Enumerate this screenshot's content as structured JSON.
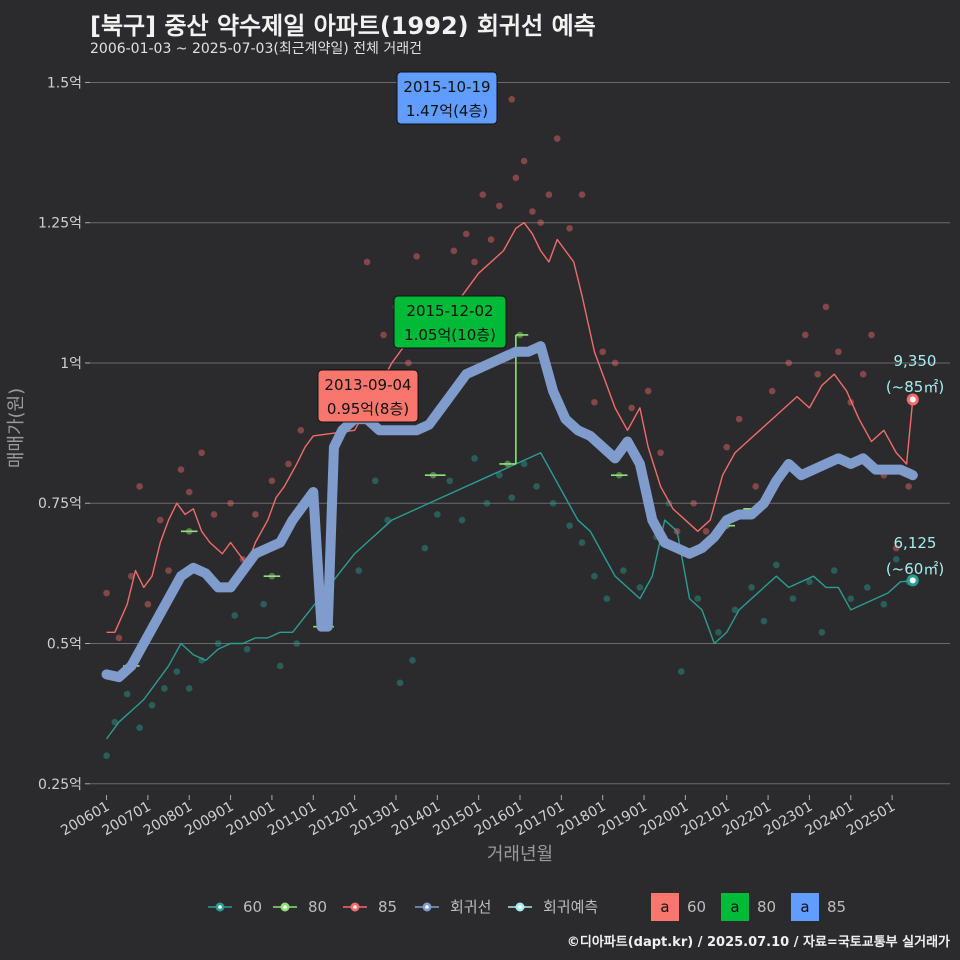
{
  "header": {
    "title": "[북구] 중산 약수제일 아파트(1992) 회귀선 예측",
    "subtitle": "2006-01-03 ~ 2025-07-03(최근계약일) 전체 거래건"
  },
  "caption": "©디아파트(dapt.kr) / 2025.07.10 / 자료=국토교통부 실거래가",
  "colors": {
    "s60": "#2a9d93",
    "s80": "#8fe07a",
    "s85": "#f26b6b",
    "regression": "#7f9ccc",
    "forecast": "#a8ecec",
    "box60": "#f8766d",
    "box80": "#00ba38",
    "box85": "#619cff",
    "grid": "#6a6a6a"
  },
  "chart_data": {
    "type": "line",
    "title": "[북구] 중산 약수제일 아파트(1992) 회귀선 예측",
    "xlabel": "거래년월",
    "ylabel": "매매가(원)",
    "xlim": [
      2005.6,
      2026.4
    ],
    "ylim": [
      0.23,
      1.54
    ],
    "x_ticks": [
      2006,
      2007,
      2008,
      2009,
      2010,
      2011,
      2012,
      2013,
      2014,
      2015,
      2016,
      2017,
      2018,
      2019,
      2020,
      2021,
      2022,
      2023,
      2024,
      2025
    ],
    "x_tick_labels": [
      "200601",
      "200701",
      "200801",
      "200901",
      "201001",
      "201101",
      "201201",
      "201301",
      "201401",
      "201501",
      "201601",
      "201701",
      "201801",
      "201901",
      "202001",
      "202101",
      "202201",
      "202301",
      "202401",
      "202501"
    ],
    "y_ticks": [
      0.25,
      0.5,
      0.75,
      1.0,
      1.25,
      1.5
    ],
    "y_tick_labels": [
      "0.25억",
      "0.5억",
      "0.75억",
      "1억",
      "1.25억",
      "1.5억"
    ],
    "series": [
      {
        "name": "85",
        "kind": "rolling",
        "x": [
          2006.0,
          2006.2,
          2006.5,
          2006.7,
          2006.9,
          2007.1,
          2007.3,
          2007.5,
          2007.7,
          2007.9,
          2008.1,
          2008.3,
          2008.5,
          2008.8,
          2009.0,
          2009.2,
          2009.4,
          2009.6,
          2009.9,
          2010.1,
          2010.3,
          2010.6,
          2010.8,
          2011.0,
          2012.0,
          2012.3,
          2012.6,
          2012.9,
          2013.2,
          2013.5,
          2013.8,
          2014.1,
          2014.4,
          2014.7,
          2015.0,
          2015.3,
          2015.6,
          2015.9,
          2016.1,
          2016.3,
          2016.5,
          2016.7,
          2016.9,
          2017.1,
          2017.3,
          2017.5,
          2017.8,
          2018.0,
          2018.3,
          2018.6,
          2018.9,
          2019.1,
          2019.4,
          2019.7,
          2020.0,
          2020.3,
          2020.6,
          2020.9,
          2021.2,
          2021.5,
          2021.8,
          2022.1,
          2022.4,
          2022.7,
          2023.0,
          2023.3,
          2023.6,
          2023.9,
          2024.2,
          2024.5,
          2024.8,
          2025.1,
          2025.35,
          2025.5
        ],
        "values": [
          0.52,
          0.52,
          0.57,
          0.63,
          0.6,
          0.62,
          0.68,
          0.72,
          0.75,
          0.73,
          0.74,
          0.7,
          0.68,
          0.66,
          0.68,
          0.66,
          0.64,
          0.68,
          0.72,
          0.76,
          0.78,
          0.82,
          0.85,
          0.87,
          0.88,
          0.92,
          0.96,
          1.0,
          1.03,
          1.05,
          1.06,
          1.08,
          1.1,
          1.13,
          1.16,
          1.18,
          1.2,
          1.24,
          1.25,
          1.23,
          1.2,
          1.18,
          1.22,
          1.2,
          1.18,
          1.12,
          1.02,
          0.98,
          0.92,
          0.88,
          0.92,
          0.85,
          0.78,
          0.74,
          0.72,
          0.7,
          0.72,
          0.8,
          0.84,
          0.86,
          0.88,
          0.9,
          0.92,
          0.94,
          0.92,
          0.96,
          0.98,
          0.95,
          0.9,
          0.86,
          0.88,
          0.84,
          0.82,
          0.935
        ]
      },
      {
        "name": "60",
        "kind": "rolling",
        "x": [
          2006.0,
          2006.3,
          2006.6,
          2006.9,
          2007.2,
          2007.5,
          2007.8,
          2008.1,
          2008.4,
          2008.7,
          2009.0,
          2009.3,
          2009.6,
          2009.9,
          2010.2,
          2010.5,
          2012.0,
          2012.3,
          2012.6,
          2012.9,
          2013.2,
          2013.5,
          2013.8,
          2014.1,
          2014.4,
          2014.7,
          2015.0,
          2015.3,
          2015.6,
          2015.9,
          2016.2,
          2016.5,
          2016.8,
          2017.1,
          2017.4,
          2017.7,
          2018.0,
          2018.3,
          2018.6,
          2018.9,
          2019.2,
          2019.5,
          2019.8,
          2020.1,
          2020.4,
          2020.7,
          2021.0,
          2021.3,
          2021.6,
          2021.9,
          2022.2,
          2022.5,
          2022.8,
          2023.1,
          2023.4,
          2023.7,
          2024.0,
          2024.3,
          2024.6,
          2024.9,
          2025.2,
          2025.5
        ],
        "values": [
          0.33,
          0.36,
          0.38,
          0.4,
          0.43,
          0.46,
          0.5,
          0.48,
          0.47,
          0.49,
          0.5,
          0.5,
          0.51,
          0.51,
          0.52,
          0.52,
          0.66,
          0.68,
          0.7,
          0.72,
          0.73,
          0.74,
          0.75,
          0.76,
          0.77,
          0.78,
          0.79,
          0.8,
          0.81,
          0.82,
          0.83,
          0.84,
          0.8,
          0.76,
          0.72,
          0.7,
          0.66,
          0.62,
          0.6,
          0.58,
          0.62,
          0.72,
          0.7,
          0.58,
          0.56,
          0.5,
          0.52,
          0.56,
          0.58,
          0.6,
          0.62,
          0.6,
          0.61,
          0.62,
          0.6,
          0.6,
          0.56,
          0.57,
          0.58,
          0.59,
          0.61,
          0.612
        ]
      },
      {
        "name": "80",
        "kind": "segments",
        "segments": [
          [
            2006.4,
            2006.8,
            0.46
          ],
          [
            2007.8,
            2008.2,
            0.7
          ],
          [
            2009.8,
            2010.2,
            0.62
          ],
          [
            2011.0,
            2011.5,
            0.53
          ],
          [
            2013.7,
            2014.2,
            0.8
          ],
          [
            2015.5,
            2015.9,
            0.82
          ],
          [
            2015.9,
            2016.2,
            1.05
          ],
          [
            2018.2,
            2018.6,
            0.8
          ],
          [
            2020.8,
            2021.2,
            0.71
          ],
          [
            2021.4,
            2021.9,
            0.74
          ]
        ]
      },
      {
        "name": "회귀선",
        "kind": "regression",
        "x": [
          2006.0,
          2006.3,
          2006.6,
          2006.9,
          2007.2,
          2007.5,
          2007.8,
          2008.1,
          2008.4,
          2008.7,
          2009.0,
          2009.3,
          2009.6,
          2009.9,
          2010.2,
          2010.5,
          2010.8,
          2011.0,
          2011.2,
          2011.35,
          2011.5,
          2011.7,
          2012.0,
          2012.3,
          2012.6,
          2012.9,
          2013.2,
          2013.5,
          2013.8,
          2014.1,
          2014.4,
          2014.7,
          2015.0,
          2015.3,
          2015.6,
          2015.9,
          2016.2,
          2016.5,
          2016.8,
          2017.1,
          2017.4,
          2017.7,
          2018.0,
          2018.3,
          2018.6,
          2018.9,
          2019.2,
          2019.5,
          2019.8,
          2020.1,
          2020.4,
          2020.7,
          2021.0,
          2021.3,
          2021.6,
          2021.9,
          2022.2,
          2022.5,
          2022.8,
          2023.1,
          2023.4,
          2023.7,
          2024.0,
          2024.3,
          2024.6,
          2024.9,
          2025.2,
          2025.5
        ],
        "values": [
          0.445,
          0.44,
          0.46,
          0.5,
          0.54,
          0.58,
          0.62,
          0.635,
          0.625,
          0.6,
          0.6,
          0.63,
          0.66,
          0.67,
          0.68,
          0.72,
          0.75,
          0.77,
          0.53,
          0.53,
          0.85,
          0.88,
          0.9,
          0.9,
          0.88,
          0.88,
          0.88,
          0.88,
          0.89,
          0.92,
          0.95,
          0.98,
          0.99,
          1.0,
          1.01,
          1.02,
          1.02,
          1.03,
          0.95,
          0.9,
          0.88,
          0.87,
          0.85,
          0.83,
          0.86,
          0.82,
          0.72,
          0.68,
          0.67,
          0.66,
          0.67,
          0.69,
          0.72,
          0.73,
          0.73,
          0.75,
          0.79,
          0.82,
          0.8,
          0.81,
          0.82,
          0.83,
          0.82,
          0.83,
          0.81,
          0.81,
          0.81,
          0.8
        ]
      }
    ],
    "scatter": {
      "85": [
        [
          2006.0,
          0.59
        ],
        [
          2006.3,
          0.51
        ],
        [
          2006.6,
          0.62
        ],
        [
          2006.8,
          0.78
        ],
        [
          2007.0,
          0.57
        ],
        [
          2007.3,
          0.72
        ],
        [
          2007.5,
          0.63
        ],
        [
          2007.8,
          0.81
        ],
        [
          2008.0,
          0.77
        ],
        [
          2008.3,
          0.84
        ],
        [
          2008.6,
          0.73
        ],
        [
          2009.0,
          0.75
        ],
        [
          2009.3,
          0.65
        ],
        [
          2009.6,
          0.73
        ],
        [
          2010.0,
          0.79
        ],
        [
          2010.4,
          0.82
        ],
        [
          2010.7,
          0.88
        ],
        [
          2012.3,
          1.18
        ],
        [
          2012.7,
          1.05
        ],
        [
          2013.0,
          1.1
        ],
        [
          2013.3,
          1.0
        ],
        [
          2013.5,
          1.19
        ],
        [
          2013.9,
          1.05
        ],
        [
          2014.1,
          1.1
        ],
        [
          2014.4,
          1.2
        ],
        [
          2014.7,
          1.23
        ],
        [
          2014.9,
          1.18
        ],
        [
          2015.1,
          1.3
        ],
        [
          2015.3,
          1.22
        ],
        [
          2015.5,
          1.28
        ],
        [
          2015.8,
          1.47
        ],
        [
          2015.9,
          1.33
        ],
        [
          2016.1,
          1.36
        ],
        [
          2016.3,
          1.27
        ],
        [
          2016.5,
          1.25
        ],
        [
          2016.7,
          1.3
        ],
        [
          2016.9,
          1.4
        ],
        [
          2017.2,
          1.24
        ],
        [
          2017.5,
          1.3
        ],
        [
          2017.8,
          0.93
        ],
        [
          2018.0,
          1.02
        ],
        [
          2018.3,
          1.0
        ],
        [
          2018.7,
          0.92
        ],
        [
          2019.1,
          0.95
        ],
        [
          2019.4,
          0.84
        ],
        [
          2019.8,
          0.7
        ],
        [
          2020.2,
          0.75
        ],
        [
          2020.5,
          0.7
        ],
        [
          2021.0,
          0.85
        ],
        [
          2021.3,
          0.9
        ],
        [
          2021.7,
          0.78
        ],
        [
          2022.1,
          0.95
        ],
        [
          2022.5,
          1.0
        ],
        [
          2022.9,
          1.05
        ],
        [
          2023.2,
          0.98
        ],
        [
          2023.4,
          1.1
        ],
        [
          2023.7,
          1.02
        ],
        [
          2024.0,
          0.93
        ],
        [
          2024.3,
          0.98
        ],
        [
          2024.5,
          1.05
        ],
        [
          2024.8,
          0.8
        ],
        [
          2025.1,
          0.67
        ],
        [
          2025.4,
          0.78
        ]
      ],
      "60": [
        [
          2006.0,
          0.3
        ],
        [
          2006.2,
          0.36
        ],
        [
          2006.5,
          0.41
        ],
        [
          2006.8,
          0.35
        ],
        [
          2007.1,
          0.39
        ],
        [
          2007.4,
          0.42
        ],
        [
          2007.7,
          0.45
        ],
        [
          2008.0,
          0.42
        ],
        [
          2008.3,
          0.47
        ],
        [
          2008.7,
          0.5
        ],
        [
          2009.1,
          0.55
        ],
        [
          2009.4,
          0.49
        ],
        [
          2009.8,
          0.57
        ],
        [
          2010.2,
          0.46
        ],
        [
          2010.6,
          0.5
        ],
        [
          2012.1,
          0.63
        ],
        [
          2012.5,
          0.79
        ],
        [
          2012.8,
          0.72
        ],
        [
          2013.1,
          0.43
        ],
        [
          2013.4,
          0.47
        ],
        [
          2013.7,
          0.67
        ],
        [
          2014.0,
          0.73
        ],
        [
          2014.3,
          0.79
        ],
        [
          2014.6,
          0.72
        ],
        [
          2014.9,
          0.83
        ],
        [
          2015.2,
          0.75
        ],
        [
          2015.5,
          0.8
        ],
        [
          2015.8,
          0.76
        ],
        [
          2016.1,
          0.82
        ],
        [
          2016.4,
          0.78
        ],
        [
          2016.8,
          0.75
        ],
        [
          2017.2,
          0.71
        ],
        [
          2017.5,
          0.68
        ],
        [
          2017.8,
          0.62
        ],
        [
          2018.1,
          0.58
        ],
        [
          2018.5,
          0.63
        ],
        [
          2018.9,
          0.6
        ],
        [
          2019.3,
          0.69
        ],
        [
          2019.6,
          0.75
        ],
        [
          2019.9,
          0.45
        ],
        [
          2020.3,
          0.58
        ],
        [
          2020.8,
          0.52
        ],
        [
          2021.2,
          0.56
        ],
        [
          2021.6,
          0.6
        ],
        [
          2021.9,
          0.54
        ],
        [
          2022.2,
          0.64
        ],
        [
          2022.6,
          0.58
        ],
        [
          2023.0,
          0.61
        ],
        [
          2023.3,
          0.52
        ],
        [
          2023.6,
          0.63
        ],
        [
          2024.0,
          0.58
        ],
        [
          2024.4,
          0.6
        ],
        [
          2024.8,
          0.57
        ],
        [
          2025.1,
          0.65
        ],
        [
          2025.4,
          0.61
        ]
      ],
      "80": [
        [
          2006.6,
          0.46
        ],
        [
          2008.0,
          0.7
        ],
        [
          2010.0,
          0.62
        ],
        [
          2011.3,
          0.53
        ],
        [
          2013.9,
          0.8
        ],
        [
          2015.7,
          0.82
        ],
        [
          2016.0,
          1.05
        ],
        [
          2018.4,
          0.8
        ],
        [
          2021.0,
          0.71
        ],
        [
          2021.7,
          0.74
        ]
      ]
    },
    "annotations": [
      {
        "date": "2015-10-19",
        "text": "1.47억(4층)",
        "group": "85",
        "x": 2015.8,
        "y": 1.47
      },
      {
        "date": "2015-12-02",
        "text": "1.05억(10층)",
        "group": "80",
        "x": 2015.92,
        "y": 1.05
      },
      {
        "date": "2013-09-04",
        "text": "0.95억(8층)",
        "group": "60",
        "x": 2013.67,
        "y": 0.95
      }
    ],
    "end_labels": [
      {
        "value": "9,350",
        "area": "(~85㎡)",
        "x": 2025.5,
        "y": 0.935
      },
      {
        "value": "6,125",
        "area": "(~60㎡)",
        "x": 2025.5,
        "y": 0.6125
      }
    ],
    "legend": {
      "lines": [
        "60",
        "80",
        "85",
        "회귀선",
        "회귀예측"
      ],
      "boxes": [
        {
          "glyph": "a",
          "label": "60"
        },
        {
          "glyph": "a",
          "label": "80"
        },
        {
          "glyph": "a",
          "label": "85"
        }
      ],
      "position": "bottom"
    }
  }
}
